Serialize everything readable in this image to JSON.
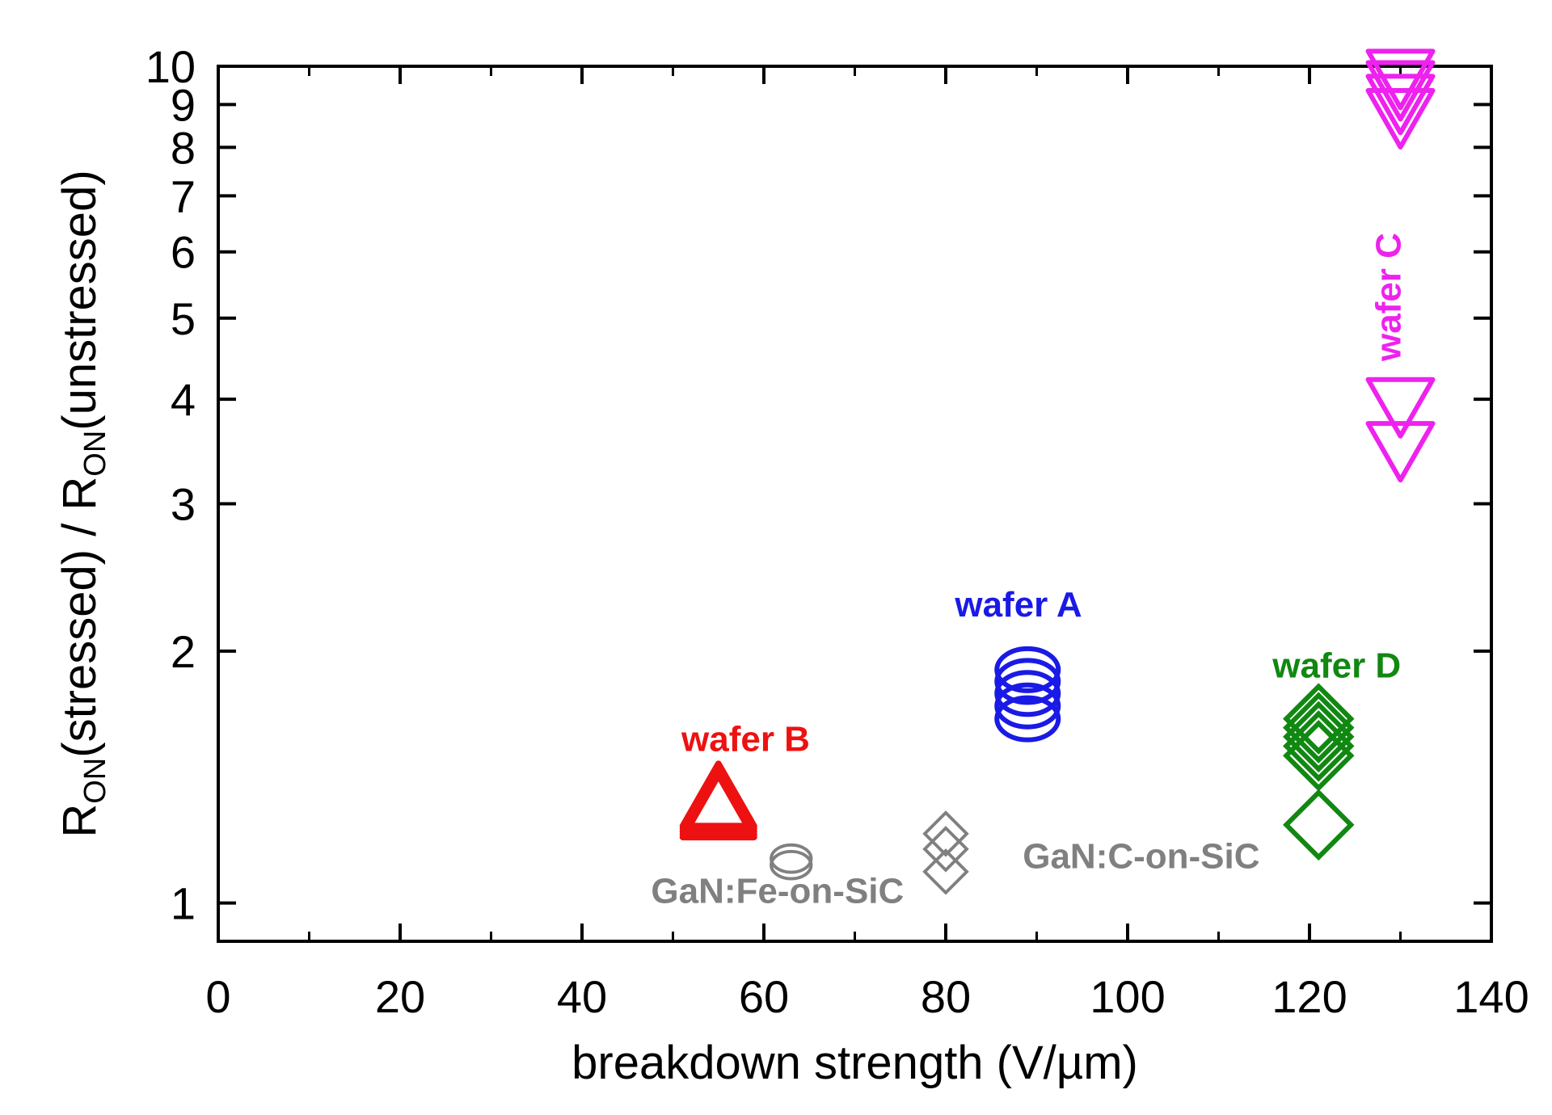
{
  "chart_data": {
    "type": "scatter",
    "title": "",
    "xlabel": "breakdown strength (V/µm)",
    "ylabel": {
      "parts": [
        {
          "text": "R",
          "sub": false
        },
        {
          "text": "ON",
          "sub": true
        },
        {
          "text": "(stressed) / R",
          "sub": false
        },
        {
          "text": "ON",
          "sub": true
        },
        {
          "text": "(unstressed)",
          "sub": false
        }
      ]
    },
    "xlim": [
      0,
      140
    ],
    "ylim": [
      0.9,
      10
    ],
    "yscale": "log",
    "x_ticks": [
      0,
      20,
      40,
      60,
      80,
      100,
      120,
      140
    ],
    "x_ticks_minor": [
      10,
      30,
      50,
      70,
      90,
      110,
      130
    ],
    "y_ticks": [
      1,
      2,
      3,
      4,
      5,
      6,
      7,
      8,
      9,
      10
    ],
    "grid": false,
    "legend": "none",
    "series": [
      {
        "name": "wafer A",
        "marker": "circle",
        "color": "#1a1ae6",
        "points": [
          [
            89,
            1.66
          ],
          [
            89,
            1.72
          ],
          [
            89,
            1.78
          ],
          [
            89,
            1.84
          ],
          [
            89,
            1.9
          ]
        ]
      },
      {
        "name": "wafer B",
        "marker": "triangle-up",
        "color": "#ee1111",
        "points": [
          [
            55,
            1.29
          ],
          [
            55,
            1.3
          ],
          [
            55,
            1.31
          ],
          [
            55,
            1.32
          ],
          [
            55,
            1.33
          ]
        ]
      },
      {
        "name": "wafer C",
        "marker": "triangle-down",
        "color": "#ee22ee",
        "points": [
          [
            130,
            3.5
          ],
          [
            130,
            3.95
          ],
          [
            130,
            8.75
          ],
          [
            130,
            9.1
          ],
          [
            130,
            9.45
          ],
          [
            130,
            9.75
          ]
        ]
      },
      {
        "name": "wafer D",
        "marker": "diamond",
        "color": "#118811",
        "points": [
          [
            121,
            1.24
          ],
          [
            121,
            1.5
          ],
          [
            121,
            1.54
          ],
          [
            121,
            1.58
          ],
          [
            121,
            1.62
          ],
          [
            121,
            1.66
          ]
        ]
      },
      {
        "name": "GaN:Fe-on-SiC",
        "marker": "circle",
        "color": "#808080",
        "points": [
          [
            63,
            1.11
          ],
          [
            63,
            1.13
          ]
        ]
      },
      {
        "name": "GaN:C-on-SiC",
        "marker": "diamond",
        "color": "#808080",
        "points": [
          [
            80,
            1.09
          ],
          [
            80,
            1.16
          ],
          [
            80,
            1.21
          ]
        ]
      }
    ],
    "annotations": [
      {
        "text": "wafer A",
        "x": 88,
        "y": 2.2,
        "color": "#1a1ae6",
        "rotate": 0,
        "anchor": "middle"
      },
      {
        "text": "wafer B",
        "x": 58,
        "y": 1.52,
        "color": "#ee1111",
        "rotate": 0,
        "anchor": "middle"
      },
      {
        "text": "wafer C",
        "x": 130,
        "y": 5.3,
        "color": "#ee22ee",
        "rotate": -90,
        "anchor": "middle"
      },
      {
        "text": "wafer D",
        "x": 123,
        "y": 1.86,
        "color": "#118811",
        "rotate": 0,
        "anchor": "middle"
      },
      {
        "text": "GaN:Fe-on-SiC",
        "x": 61.5,
        "y": 1.0,
        "color": "#808080",
        "rotate": 0,
        "anchor": "middle"
      },
      {
        "text": "GaN:C-on-SiC",
        "x": 101.5,
        "y": 1.1,
        "color": "#808080",
        "rotate": 0,
        "anchor": "middle"
      }
    ]
  }
}
